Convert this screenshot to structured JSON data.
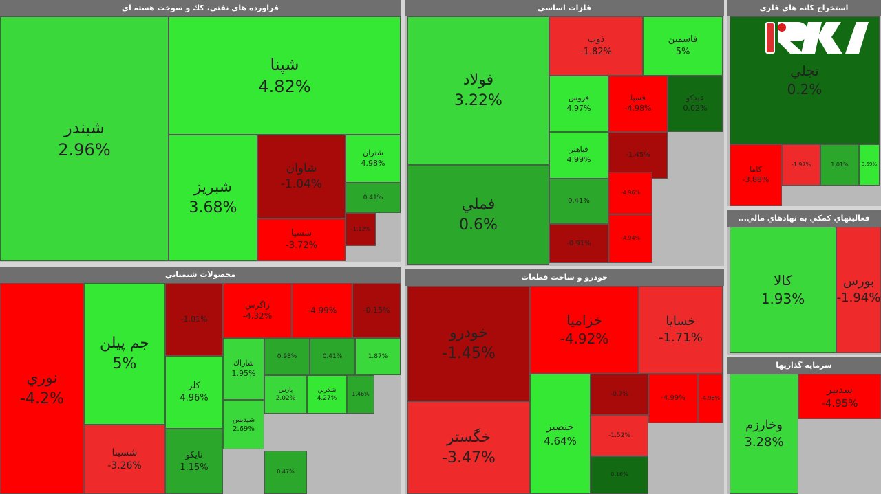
{
  "colors": {
    "bright_green": "#34e834",
    "light_green": "#3ad83a",
    "green": "#2ba82b",
    "dark_green": "#126a12",
    "red": "#ff0000",
    "light_red": "#ee2a2a",
    "dark_red": "#a80a0a",
    "header": "#6f6f6f",
    "background": "#b9b9b9"
  },
  "logo_icon": "rokna-logo-icon",
  "chart_data": [
    {
      "type": "heatmap",
      "title": "فراورده هاي نفتي، كك و سوخت هسته اي",
      "cells": [
        {
          "name": "شبندر",
          "value": 2.96
        },
        {
          "name": "شپنا",
          "value": 4.82
        },
        {
          "name": "شبريز",
          "value": 3.68
        },
        {
          "name": "شاوان",
          "value": -1.04
        },
        {
          "name": "شتران",
          "value": 4.98
        },
        {
          "name": "شسپا",
          "value": -3.72
        },
        {
          "name": "",
          "value": 0.41
        },
        {
          "name": "",
          "value": -1.12
        }
      ]
    },
    {
      "type": "heatmap",
      "title": "فلزات اساسي",
      "cells": [
        {
          "name": "فولاد",
          "value": 3.22
        },
        {
          "name": "فملي",
          "value": 0.6
        },
        {
          "name": "ذوب",
          "value": -1.82
        },
        {
          "name": "فاسمين",
          "value": 5
        },
        {
          "name": "فروس",
          "value": 4.97
        },
        {
          "name": "فسپا",
          "value": -4.98
        },
        {
          "name": "عيدكو",
          "value": 0.02
        },
        {
          "name": "فباهنر",
          "value": 4.99
        },
        {
          "name": "",
          "value": -1.45
        },
        {
          "name": "",
          "value": 0.41
        },
        {
          "name": "",
          "value": -4.96
        },
        {
          "name": "",
          "value": -0.91
        },
        {
          "name": "",
          "value": -4.94
        }
      ]
    },
    {
      "type": "heatmap",
      "title": "استخراج كانه هاي فلزي",
      "cells": [
        {
          "name": "تجلي",
          "value": 0.2
        },
        {
          "name": "كاما",
          "value": -3.88
        },
        {
          "name": "",
          "value": -1.97
        },
        {
          "name": "",
          "value": 1.01
        },
        {
          "name": "",
          "value": 3.59
        }
      ]
    },
    {
      "type": "heatmap",
      "title": "فعاليتهاي كمكي به نهادهاي مالي...",
      "cells": [
        {
          "name": "كالا",
          "value": 1.93
        },
        {
          "name": "بورس",
          "value": -1.94
        }
      ]
    },
    {
      "type": "heatmap",
      "title": "محصولات شيميايي",
      "cells": [
        {
          "name": "نوري",
          "value": -4.2
        },
        {
          "name": "جم پيلن",
          "value": 5
        },
        {
          "name": "",
          "value": -1.01
        },
        {
          "name": "زاگرس",
          "value": -4.32
        },
        {
          "name": "",
          "value": -4.99
        },
        {
          "name": "",
          "value": -0.15
        },
        {
          "name": "كلر",
          "value": 4.96
        },
        {
          "name": "شاراك",
          "value": 1.95
        },
        {
          "name": "",
          "value": 0.98
        },
        {
          "name": "",
          "value": 0.41
        },
        {
          "name": "",
          "value": 1.87
        },
        {
          "name": "پارس",
          "value": 2.02
        },
        {
          "name": "شكربن",
          "value": 4.27
        },
        {
          "name": "",
          "value": 1.46
        },
        {
          "name": "شپديس",
          "value": 2.69
        },
        {
          "name": "شسينا",
          "value": -3.26
        },
        {
          "name": "نايكو",
          "value": 1.15
        },
        {
          "name": "",
          "value": 0.47
        }
      ]
    },
    {
      "type": "heatmap",
      "title": "خودرو و ساخت قطعات",
      "cells": [
        {
          "name": "خودرو",
          "value": -1.45
        },
        {
          "name": "خزاميا",
          "value": -4.92
        },
        {
          "name": "خسايا",
          "value": -1.71
        },
        {
          "name": "خگستر",
          "value": -3.47
        },
        {
          "name": "خنصير",
          "value": 4.64
        },
        {
          "name": "",
          "value": -0.7
        },
        {
          "name": "",
          "value": -4.99
        },
        {
          "name": "",
          "value": -4.98
        },
        {
          "name": "",
          "value": -1.52
        },
        {
          "name": "",
          "value": 0.16
        }
      ]
    },
    {
      "type": "heatmap",
      "title": "سرمايه گذاريها",
      "cells": [
        {
          "name": "وخارزم",
          "value": 3.28
        },
        {
          "name": "سدبير",
          "value": -4.95
        }
      ]
    }
  ]
}
